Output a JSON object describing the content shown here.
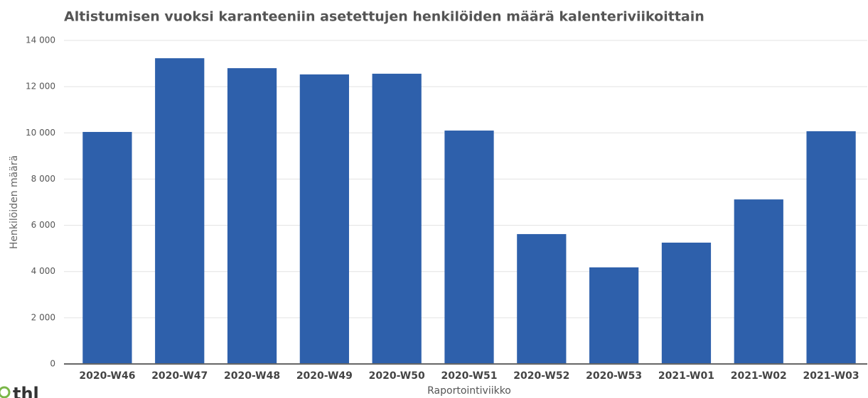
{
  "chart_data": {
    "type": "bar",
    "title": "Altistumisen vuoksi karanteeniin asetettujen henkilöiden määrä kalenteriviikoittain",
    "x_label": "Raportointiviikko",
    "y_label": "Henkilöiden määrä",
    "logo": "thl",
    "categories": [
      "2020-W46",
      "2020-W47",
      "2020-W48",
      "2020-W49",
      "2020-W50",
      "2020-W51",
      "2020-W52",
      "2020-W53",
      "2021-W01",
      "2021-W02",
      "2021-W03"
    ],
    "values": [
      10040,
      13230,
      12800,
      12530,
      12560,
      10100,
      5620,
      4180,
      5250,
      7120,
      10070
    ],
    "color": "#2e60ab",
    "ylim": [
      0,
      14000
    ],
    "yticks": [
      0,
      {
        "value": 2000,
        "label": "2 000"
      },
      {
        "value": 4000,
        "label": "4 000"
      },
      {
        "value": 6000,
        "label": "6 000"
      },
      {
        "value": 8000,
        "label": "8 000"
      },
      {
        "value": 10000,
        "label": "10 000"
      },
      {
        "value": 12000,
        "label": "12 000"
      },
      {
        "value": 14000,
        "label": "14 000"
      }
    ],
    "grid": true
  }
}
